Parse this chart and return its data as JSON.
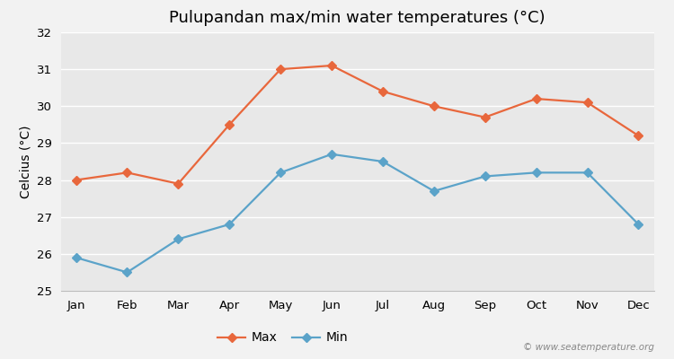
{
  "title": "Pulupandan max/min water temperatures (°C)",
  "ylabel": "Celcius (°C)",
  "months": [
    "Jan",
    "Feb",
    "Mar",
    "Apr",
    "May",
    "Jun",
    "Jul",
    "Aug",
    "Sep",
    "Oct",
    "Nov",
    "Dec"
  ],
  "max_temps": [
    28.0,
    28.2,
    27.9,
    29.5,
    31.0,
    31.1,
    30.4,
    30.0,
    29.7,
    30.2,
    30.1,
    29.2
  ],
  "min_temps": [
    25.9,
    25.5,
    26.4,
    26.8,
    28.2,
    28.7,
    28.5,
    27.7,
    28.1,
    28.2,
    28.2,
    26.8
  ],
  "max_color": "#E8673C",
  "min_color": "#5BA3C9",
  "bg_color": "#f2f2f2",
  "plot_bg_color": "#e8e8e8",
  "grid_color": "#ffffff",
  "spine_color": "#bbbbbb",
  "ylim": [
    25,
    32
  ],
  "yticks": [
    25,
    26,
    27,
    28,
    29,
    30,
    31,
    32
  ],
  "legend_labels": [
    "Max",
    "Min"
  ],
  "watermark": "© www.seatemperature.org",
  "title_fontsize": 13,
  "axis_label_fontsize": 10,
  "tick_fontsize": 9.5,
  "legend_fontsize": 10
}
